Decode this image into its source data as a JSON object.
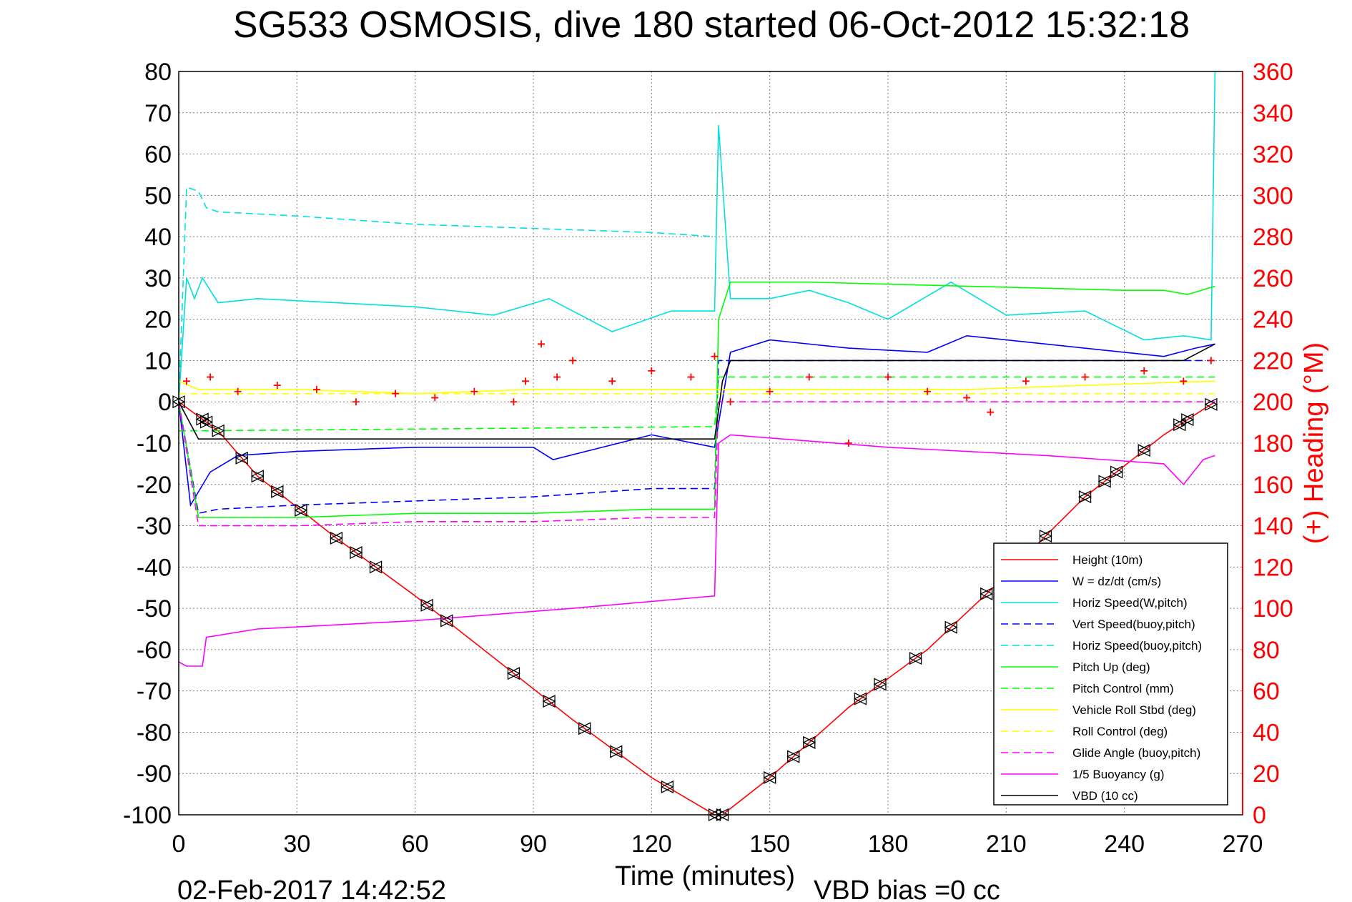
{
  "chart_data": {
    "type": "line",
    "title": "SG533 OSMOSIS, dive 180 started 06-Oct-2012 15:32:18",
    "xlabel": "Time (minutes)",
    "ylabel_right": "(+) Heading (°M)",
    "footer_left": "02-Feb-2017 14:42:52",
    "footer_right": "VBD bias =0 cc",
    "xlim": [
      0,
      270
    ],
    "ylim": [
      -100,
      80
    ],
    "ylim_right": [
      0,
      360
    ],
    "xticks": [
      "0",
      "30",
      "60",
      "90",
      "120",
      "150",
      "180",
      "210",
      "240",
      "270"
    ],
    "yticks": [
      "80",
      "70",
      "60",
      "50",
      "40",
      "30",
      "20",
      "10",
      "0",
      "-10",
      "-20",
      "-30",
      "-40",
      "-50",
      "-60",
      "-70",
      "-80",
      "-90",
      "-100"
    ],
    "yticks_right": [
      "360",
      "340",
      "320",
      "300",
      "280",
      "260",
      "240",
      "220",
      "200",
      "180",
      "160",
      "140",
      "120",
      "100",
      "80",
      "60",
      "40",
      "20",
      "0"
    ],
    "grid": true,
    "legend_position": "bottom-right",
    "series": [
      {
        "name": "Height (10m)",
        "color": "#ff0000",
        "style": "solid",
        "x": [
          0,
          10,
          20,
          40,
          60,
          80,
          100,
          120,
          136,
          138,
          150,
          170,
          190,
          210,
          230,
          250,
          263
        ],
        "y": [
          0,
          -7,
          -18,
          -33,
          -47,
          -62,
          -77,
          -91,
          -100,
          -100,
          -91,
          -74,
          -60,
          -42,
          -23,
          -8,
          0
        ]
      },
      {
        "name": "W = dz/dt (cm/s)",
        "color": "#0000ff",
        "style": "solid",
        "x": [
          0,
          3,
          8,
          15,
          30,
          60,
          90,
          95,
          120,
          136,
          140,
          150,
          170,
          190,
          200,
          220,
          240,
          250,
          258,
          263
        ],
        "y": [
          0,
          -25,
          -17,
          -13,
          -12,
          -11,
          -11,
          -14,
          -8,
          -11,
          12,
          15,
          13,
          12,
          16,
          14,
          12,
          11,
          13,
          14
        ]
      },
      {
        "name": "Horiz Speed(W,pitch)",
        "color": "#00e0e0",
        "style": "solid",
        "x": [
          0,
          2,
          4,
          6,
          10,
          20,
          40,
          60,
          80,
          94,
          110,
          125,
          136,
          137,
          140,
          150,
          160,
          170,
          180,
          196,
          210,
          230,
          245,
          255,
          262,
          263
        ],
        "y": [
          0,
          30,
          25,
          30,
          24,
          25,
          24,
          23,
          21,
          25,
          17,
          22,
          22,
          67,
          25,
          25,
          27,
          24,
          20,
          29,
          21,
          22,
          15,
          16,
          15,
          80
        ]
      },
      {
        "name": "Vert Speed(buoy,pitch)",
        "color": "#0000ff",
        "style": "dashed",
        "x": [
          0,
          5,
          10,
          30,
          60,
          90,
          120,
          136,
          137,
          140,
          263
        ],
        "y": [
          0,
          -27,
          -26,
          -25,
          -24,
          -23,
          -21,
          -21,
          10,
          10,
          10
        ]
      },
      {
        "name": "Horiz Speed(buoy,pitch)",
        "color": "#00e0e0",
        "style": "dashed",
        "x": [
          0,
          2,
          5,
          7,
          10,
          30,
          60,
          90,
          120,
          136
        ],
        "y": [
          0,
          52,
          51,
          47,
          46,
          45,
          43,
          42,
          41,
          40
        ]
      },
      {
        "name": "Pitch Up (deg)",
        "color": "#00ff00",
        "style": "solid",
        "x": [
          0,
          5,
          30,
          60,
          90,
          120,
          136,
          137,
          140,
          160,
          200,
          240,
          250,
          256,
          263
        ],
        "y": [
          0,
          -28,
          -28,
          -27,
          -27,
          -26,
          -26,
          20,
          29,
          29,
          28,
          27,
          27,
          26,
          28
        ]
      },
      {
        "name": "Pitch Control (mm)",
        "color": "#00ff00",
        "style": "dashed",
        "x": [
          0,
          5,
          136,
          137,
          263
        ],
        "y": [
          -7,
          -7,
          -6,
          6,
          6
        ]
      },
      {
        "name": "Vehicle Roll Stbd (deg)",
        "color": "#ffff00",
        "style": "solid",
        "x": [
          0,
          5,
          30,
          60,
          90,
          120,
          136,
          140,
          170,
          200,
          230,
          263
        ],
        "y": [
          5,
          3,
          3,
          2,
          3,
          3,
          3,
          3,
          3,
          3,
          4,
          5
        ]
      },
      {
        "name": "Roll Control (deg)",
        "color": "#ffff00",
        "style": "dashed",
        "x": [
          0,
          263
        ],
        "y": [
          2,
          2
        ]
      },
      {
        "name": "Glide Angle (buoy,pitch)",
        "color": "#ff00ff",
        "style": "dashed",
        "x": [
          0,
          5,
          30,
          60,
          90,
          120,
          136,
          137,
          263
        ],
        "y": [
          0,
          -30,
          -30,
          -29,
          -29,
          -28,
          -28,
          0,
          0
        ]
      },
      {
        "name": "1/5 Buoyancy (g)",
        "color": "#ff00ff",
        "style": "solid",
        "x": [
          0,
          2,
          6,
          7,
          20,
          60,
          100,
          136,
          137,
          140,
          180,
          220,
          250,
          253,
          255,
          260,
          263
        ],
        "y": [
          -63,
          -64,
          -64,
          -57,
          -55,
          -53,
          -50,
          -47,
          -10,
          -8,
          -11,
          -13,
          -15,
          -18,
          -20,
          -14,
          -13
        ]
      },
      {
        "name": "VBD (10 cc)",
        "color": "#000000",
        "style": "solid",
        "x": [
          0,
          5,
          10,
          136,
          138,
          140,
          255,
          263
        ],
        "y": [
          0,
          -9,
          -9,
          -9,
          5,
          10,
          10,
          14
        ]
      }
    ],
    "heading": {
      "name": "(+) Heading",
      "color": "#ff0000",
      "marker": "+",
      "axis": "right",
      "x": [
        2,
        8,
        15,
        25,
        35,
        45,
        55,
        65,
        75,
        85,
        88,
        92,
        96,
        100,
        110,
        120,
        130,
        136,
        140,
        150,
        160,
        170,
        180,
        190,
        200,
        206,
        215,
        230,
        245,
        255,
        262
      ],
      "y": [
        210,
        212,
        205,
        208,
        206,
        200,
        204,
        202,
        205,
        200,
        210,
        228,
        212,
        220,
        210,
        215,
        212,
        222,
        200,
        205,
        212,
        180,
        212,
        205,
        202,
        195,
        210,
        212,
        215,
        210,
        220
      ]
    },
    "markers": {
      "down_triangle_x": [
        0,
        6,
        7,
        10,
        16,
        20,
        25,
        31,
        40,
        45,
        50,
        63,
        68,
        85,
        94,
        103,
        111,
        124,
        136,
        138,
        150,
        156,
        160,
        173,
        178,
        187,
        196,
        205,
        220,
        230,
        235,
        238,
        245,
        254,
        256,
        262
      ]
    }
  }
}
